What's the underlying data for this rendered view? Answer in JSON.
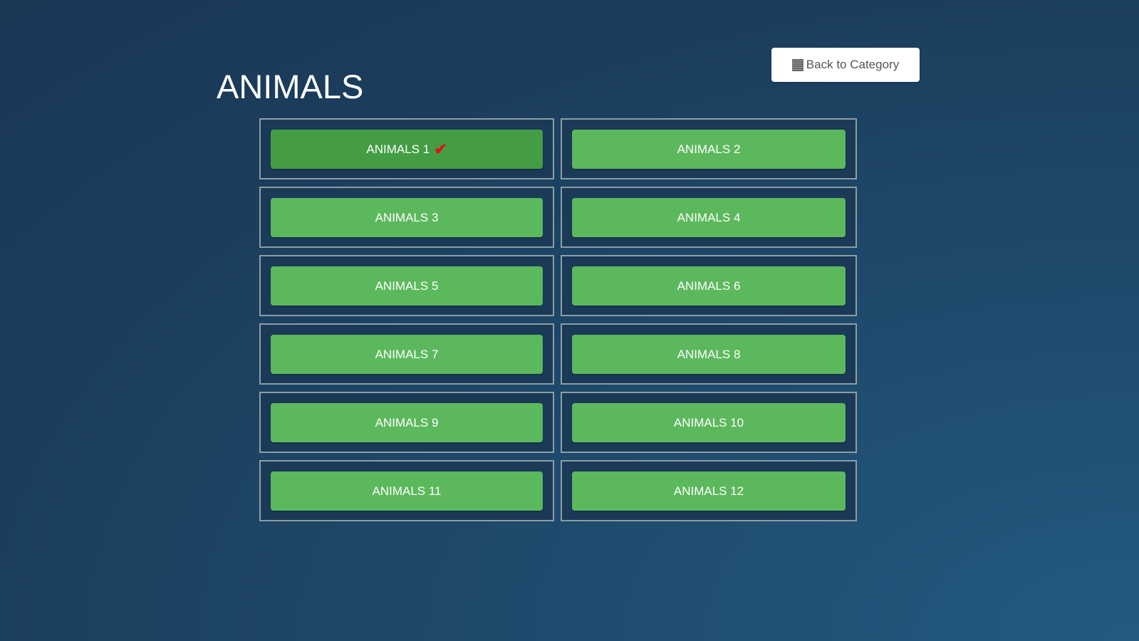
{
  "page": {
    "title": "ANIMALS",
    "back_label": "Back to Category",
    "back_icon": "list-icon"
  },
  "colors": {
    "button": "#5cb85c",
    "button_active": "#449d44",
    "check": "#e01010"
  },
  "items": [
    {
      "label": "ANIMALS 1",
      "completed": true
    },
    {
      "label": "ANIMALS 2"
    },
    {
      "label": "ANIMALS 3"
    },
    {
      "label": "ANIMALS 4"
    },
    {
      "label": "ANIMALS 5"
    },
    {
      "label": "ANIMALS 6"
    },
    {
      "label": "ANIMALS 7"
    },
    {
      "label": "ANIMALS 8"
    },
    {
      "label": "ANIMALS 9"
    },
    {
      "label": "ANIMALS 10"
    },
    {
      "label": "ANIMALS 11"
    },
    {
      "label": "ANIMALS 12"
    }
  ]
}
